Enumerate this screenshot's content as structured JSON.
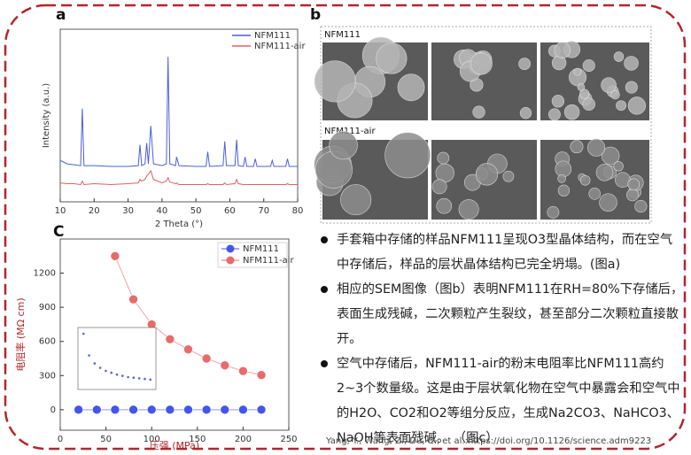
{
  "panel_labels": [
    "a",
    "b",
    "C"
  ],
  "chart_data": [
    {
      "type": "line",
      "xlabel": "2 Theta (°)",
      "ylabel": "Intensity (a.u.)",
      "x": [
        10,
        12,
        14,
        16,
        16.5,
        17,
        20,
        25,
        30,
        33,
        33.5,
        34,
        35,
        35.5,
        36,
        36.7,
        37.5,
        40,
        41.3,
        41.8,
        42.3,
        44,
        44.3,
        45,
        50,
        53,
        53.5,
        54,
        58,
        58.5,
        59,
        61.5,
        62,
        62.5,
        64,
        64.5,
        65,
        67,
        67.5,
        68,
        72,
        72.5,
        73,
        76.5,
        77,
        77.5,
        80
      ],
      "xlim": [
        10,
        80
      ],
      "xticks": [
        10,
        20,
        30,
        40,
        50,
        60,
        70,
        80
      ],
      "ylim": [
        0,
        100
      ],
      "legend": "upper right",
      "series": [
        {
          "name": "NFM111",
          "color": "#4a5fd8",
          "values": [
            24,
            22,
            21.5,
            21,
            54,
            21,
            21,
            20.5,
            20.5,
            21,
            33,
            21,
            22,
            34,
            22,
            44,
            22,
            21,
            22,
            84,
            22,
            21,
            26,
            21,
            20.5,
            20.5,
            29,
            20.5,
            21,
            35,
            21,
            21,
            36,
            21,
            20.5,
            26,
            20.5,
            20.5,
            25,
            20.5,
            20.5,
            24,
            20.5,
            20.5,
            25,
            20.5,
            20.5
          ]
        },
        {
          "name": "NFM111-air",
          "color": "#e06060",
          "values": [
            11,
            10.5,
            10.5,
            10,
            12,
            10,
            10.5,
            10,
            10.5,
            11,
            13,
            12,
            13,
            15,
            16,
            18,
            13,
            11,
            12,
            14,
            11.5,
            10.5,
            11,
            10,
            10,
            10,
            10.5,
            10,
            10,
            11,
            10,
            10.5,
            13,
            10.5,
            10,
            10,
            10,
            10,
            10,
            10,
            10,
            10,
            10,
            10,
            10.5,
            10,
            10
          ]
        }
      ]
    },
    {
      "type": "scatter-line",
      "xlabel": "压强 (MPa)",
      "ylabel": "电阻率 (MΩ cm)",
      "xlim": [
        0,
        250
      ],
      "xticks": [
        0,
        50,
        100,
        150,
        200,
        250
      ],
      "ylim": [
        -180,
        1500
      ],
      "yticks": [
        0,
        300,
        600,
        900,
        1200
      ],
      "legend": "upper right",
      "series": [
        {
          "name": "NFM111",
          "color": "#4455ee",
          "x": [
            20,
            40,
            60,
            80,
            100,
            120,
            140,
            160,
            180,
            200,
            220
          ],
          "values": [
            0,
            0,
            0,
            0,
            0,
            0,
            0,
            0,
            0,
            0,
            0
          ]
        },
        {
          "name": "NFM111-air",
          "color": "#e86b6b",
          "x": [
            60,
            80,
            100,
            120,
            140,
            160,
            180,
            200,
            220
          ],
          "values": [
            1350,
            970,
            750,
            620,
            530,
            450,
            390,
            340,
            305
          ]
        }
      ]
    },
    {
      "type": "inset-line",
      "xlim": [
        0,
        210
      ],
      "ylim": [
        0,
        100
      ],
      "series": [
        {
          "color": "#5566cc",
          "x": [
            15,
            30,
            45,
            60,
            75,
            90,
            105,
            120,
            135,
            150,
            165,
            180,
            195
          ],
          "values": [
            90,
            55,
            42,
            35,
            30,
            27,
            24,
            22,
            20,
            19,
            18,
            17,
            16
          ]
        }
      ]
    }
  ],
  "sem": {
    "rows": [
      {
        "label": "NFM111"
      },
      {
        "label": "NFM111-air"
      }
    ]
  },
  "bullets": [
    "手套箱中存储的样品NFM111呈现O3型晶体结构，而在空气中存储后，样品的层状晶体结构已完全坍塌。(图a)",
    "相应的SEM图像（图b）表明NFM111在RH=80%下存储后，表面生成残碱，二次颗粒产生裂纹，甚至部分二次颗粒直接散开。",
    "空气中存储后，NFM111-air的粉末电阻率比NFM111高约2~3个数量级。这是由于层状氧化物在空气中暴露会和空气中的H2O、CO2和O2等组分反应，生成Na2CO3、NaHCO3、NaOH等表面残碱。 （图c）"
  ],
  "citation": "Yang, Y., Wang, Z., Du, C., et al.:https://doi.org/10.1126/science.adm9223"
}
